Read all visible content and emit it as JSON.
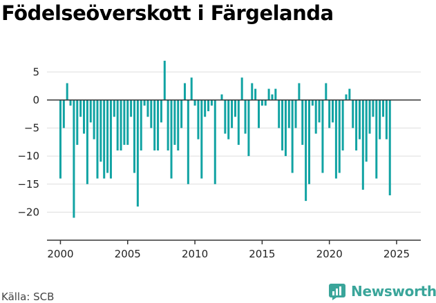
{
  "title": "Födelseöverskott i Färgelanda",
  "source": "Källa: SCB",
  "brand": {
    "name": "Newsworthy",
    "icon": "newsworthy-logo-icon",
    "color": "#3aa59a"
  },
  "chart_data": {
    "type": "bar",
    "title": "Födelseöverskott i Färgelanda",
    "xlabel": "",
    "ylabel": "",
    "bar_color": "#11a3a3",
    "ylim": [
      -25,
      7
    ],
    "xlim": [
      1999,
      2026.8
    ],
    "yticks": [
      5,
      0,
      -5,
      -10,
      -15,
      -20
    ],
    "ytick_labels": [
      "5",
      "0",
      "−5",
      "−10",
      "−15",
      "−20"
    ],
    "xticks": [
      2000,
      2005,
      2010,
      2015,
      2020,
      2025
    ],
    "xtick_labels": [
      "2000",
      "2005",
      "2010",
      "2015",
      "2020",
      "2025"
    ],
    "grid": "horizontal",
    "legend": "none",
    "start_year": 2000,
    "periods_per_year": 4,
    "values": [
      -14,
      -5,
      3,
      -1,
      -21,
      -8,
      -3,
      -6,
      -15,
      -4,
      -7,
      -14,
      -11,
      -14,
      -13,
      -14,
      -3,
      -9,
      -9,
      -8,
      -8,
      -3,
      -13,
      -19,
      -9,
      -1,
      -3,
      -5,
      -9,
      -9,
      -4,
      7,
      -9,
      -14,
      -8,
      -9,
      -5,
      3,
      -15,
      4,
      -1,
      -7,
      -14,
      -3,
      -2,
      -1,
      -15,
      0,
      1,
      -6,
      -7,
      -5,
      -3,
      -8,
      4,
      -6,
      -10,
      3,
      2,
      -5,
      -1,
      -1,
      2,
      1,
      2,
      -5,
      -9,
      -10,
      -5,
      -13,
      -5,
      3,
      -8,
      -18,
      -15,
      -1,
      -6,
      -4,
      -13,
      3,
      -5,
      -4,
      -14,
      -13,
      -9,
      1,
      2,
      -5,
      -9,
      -7,
      -16,
      -11,
      -6,
      -3,
      -14,
      -7,
      -3,
      -7,
      -17
    ]
  }
}
